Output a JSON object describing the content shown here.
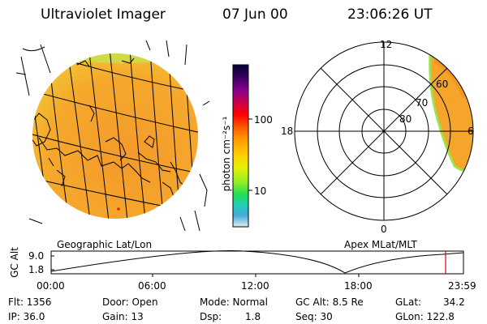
{
  "header": {
    "title": "Ultraviolet Imager",
    "date": "07 Jun 00",
    "time": "23:06:26 UT"
  },
  "colorbar": {
    "label": "photon cm⁻²s⁻¹",
    "ticks": [
      "100",
      "10"
    ],
    "colors": [
      "#000033",
      "#3a0060",
      "#8b0090",
      "#cc0044",
      "#ff0000",
      "#ff5500",
      "#ff9900",
      "#ffcc00",
      "#e8f000",
      "#99ee22",
      "#22dd55",
      "#22ccbb",
      "#44aadd",
      "#99ccdd",
      "#ddeeee"
    ]
  },
  "map_left": {
    "caption": "Geographic Lat/Lon",
    "fill_color": "#f4a52a",
    "background_color": "#ffffff"
  },
  "map_right": {
    "caption": "Apex MLat/MLT",
    "mlt_labels": {
      "top": "12",
      "bottom": "0",
      "left": "18",
      "right": "6"
    },
    "lat_labels": [
      "60",
      "70",
      "80"
    ]
  },
  "altitude_plot": {
    "ylabel": "GC Alt",
    "yticks": [
      "9.0",
      "1.8"
    ],
    "xticks": [
      "00:00",
      "06:00",
      "12:00",
      "18:00",
      "23:59"
    ],
    "marker_color": "#dd0000"
  },
  "info": {
    "flt": "Flt: 1356",
    "ip": "IP: 36.0",
    "door": "Door: Open",
    "gain": "Gain: 13",
    "mode": "Mode: Normal",
    "dsp": "Dsp:",
    "dsp_val": "1.8",
    "gc_alt": "GC Alt: 8.5 Re",
    "seq": "Seq: 30",
    "glat": "GLat:",
    "glat_val": "34.2",
    "glon": "GLon: 122.8"
  }
}
